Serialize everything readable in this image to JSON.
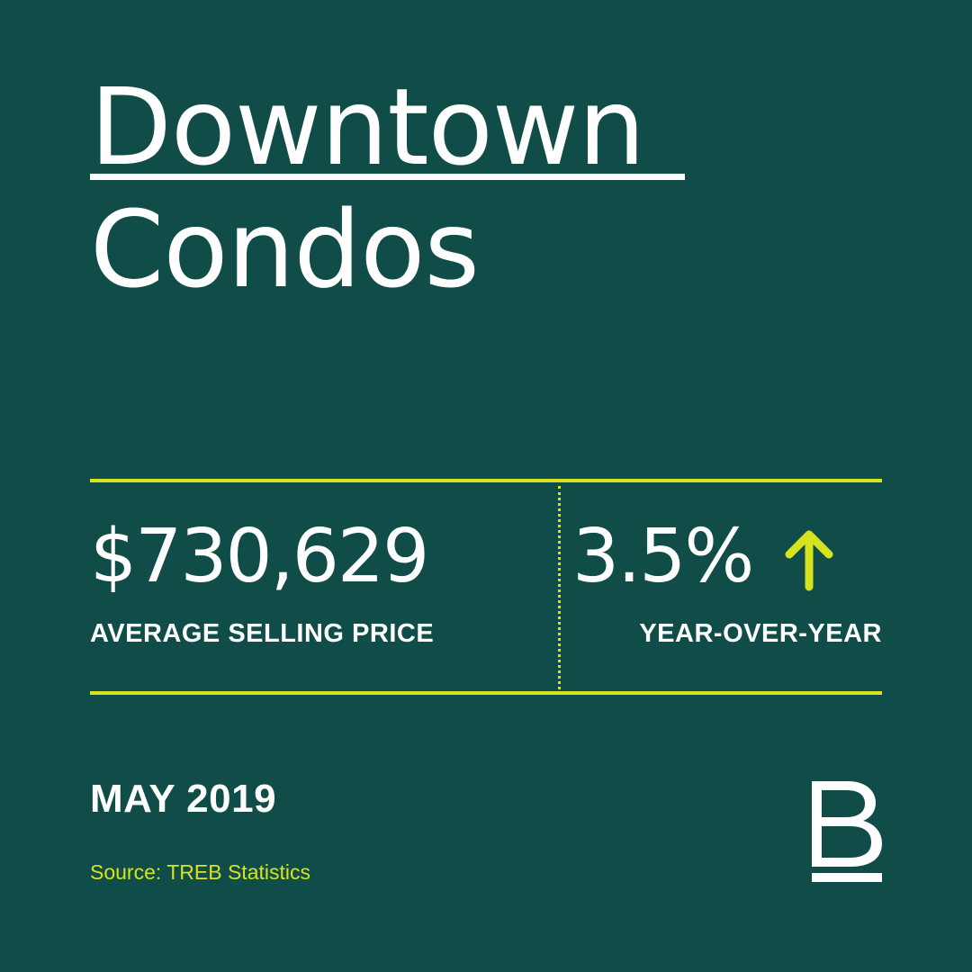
{
  "title": {
    "line1": "Downtown",
    "line2": "Condos"
  },
  "stats": {
    "price": {
      "value": "$730,629",
      "label": "AVERAGE SELLING PRICE"
    },
    "change": {
      "value": "3.5%",
      "direction": "up",
      "icon": "up-arrow-icon",
      "label": "YEAR-OVER-YEAR"
    }
  },
  "footer": {
    "date": "MAY 2019",
    "source": "Source: TREB Statistics",
    "logo_letter": "B"
  },
  "colors": {
    "background": "#104d48",
    "accent": "#d6e31e",
    "text": "#ffffff"
  }
}
